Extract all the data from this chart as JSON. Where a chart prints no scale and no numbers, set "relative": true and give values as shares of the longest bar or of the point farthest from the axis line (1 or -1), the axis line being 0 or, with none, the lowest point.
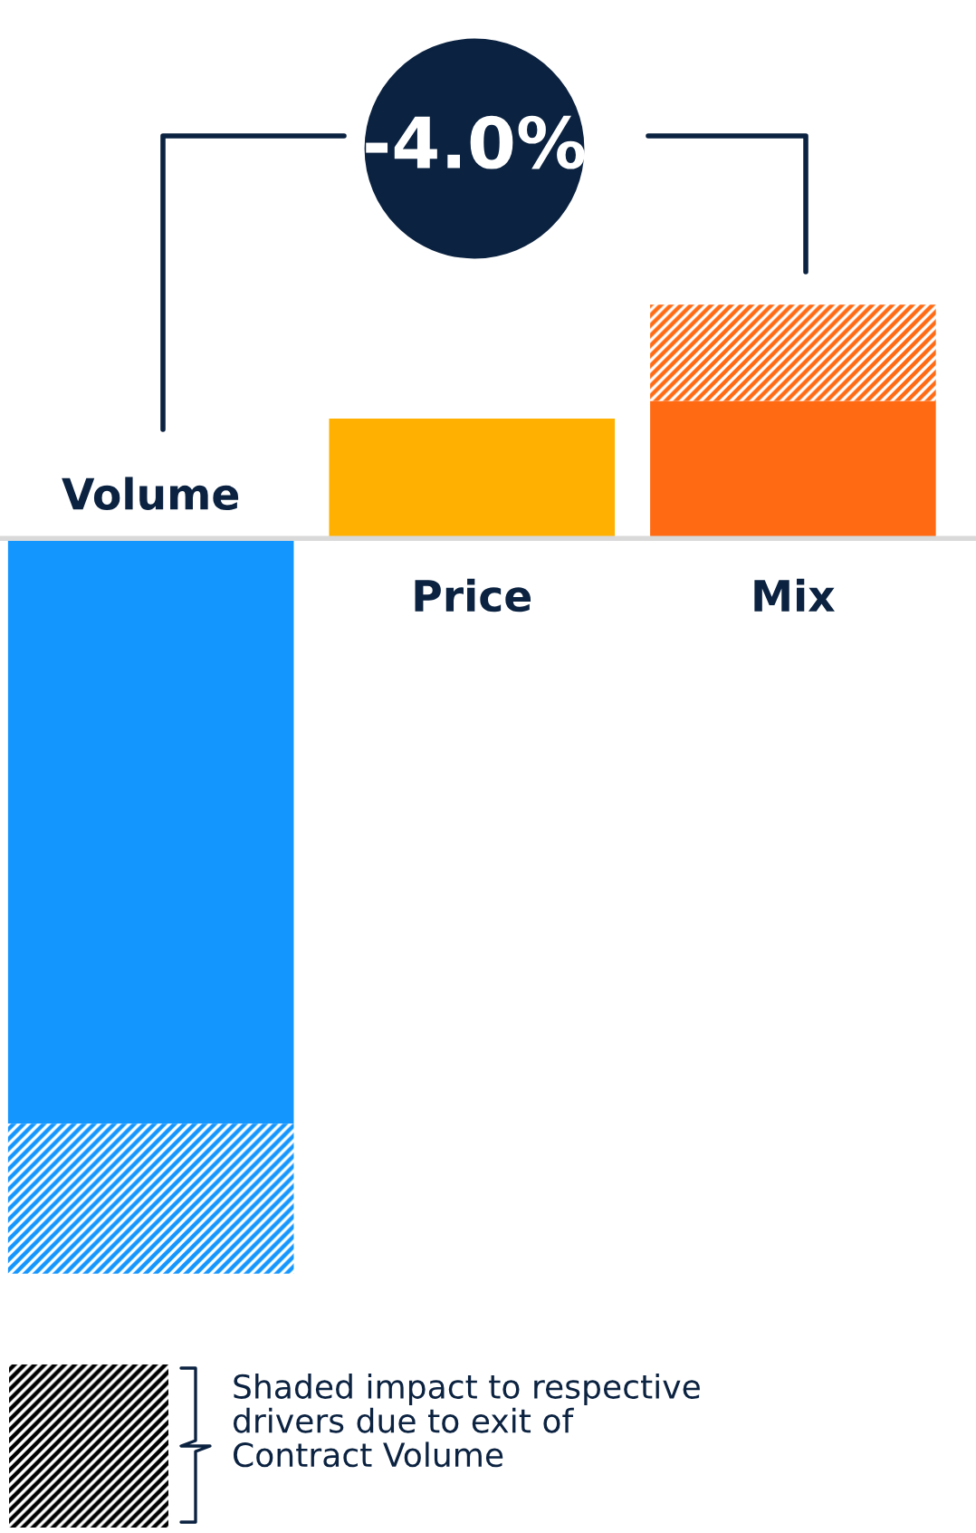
{
  "chart_data": {
    "type": "bar",
    "title": "-4.0%",
    "relative": true,
    "stacked": true,
    "categories": [
      "Volume",
      "Price",
      "Mix"
    ],
    "series": [
      {
        "colors": [
          "#1496ff",
          "#ffb000",
          "#ff6a13"
        ],
        "values": [
          -0.796,
          0.163,
          0.187
        ]
      },
      {
        "colors": [
          "#1496ff",
          "#ffb000",
          "#ff6a13"
        ],
        "values": [
          -0.204,
          null,
          0.131
        ]
      }
    ],
    "annotations": [
      "Shaded impact to respective\ndrivers due to exit of\nContract Volume"
    ]
  }
}
